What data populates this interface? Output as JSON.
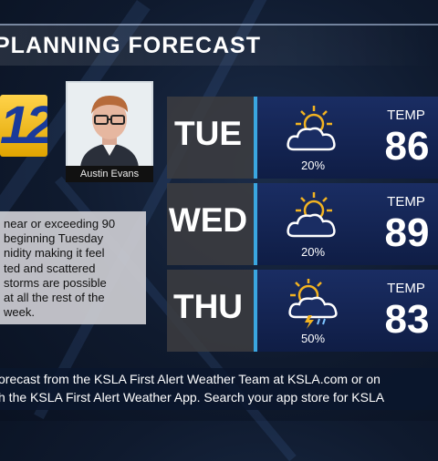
{
  "title": "PLANNING FORECAST",
  "logo": {
    "text": "12"
  },
  "presenter": {
    "name": "Austin Evans"
  },
  "story_lines": [
    "near or exceeding 90",
    "beginning Tuesday",
    "nidity making it feel",
    "ted and scattered",
    "storms are possible",
    "at all the rest of the",
    "week."
  ],
  "forecast": [
    {
      "day": "TUE",
      "icon": "partly-cloudy-icon",
      "precip": "20%",
      "temp_label": "TEMP",
      "temp": "86"
    },
    {
      "day": "WED",
      "icon": "partly-cloudy-icon",
      "precip": "20%",
      "temp_label": "TEMP",
      "temp": "89"
    },
    {
      "day": "THU",
      "icon": "thunderstorm-icon",
      "precip": "50%",
      "temp_label": "TEMP",
      "temp": "83"
    }
  ],
  "ticker": {
    "line1": "orecast from the KSLA First Alert Weather Team at KSLA.com or on",
    "line2": "h the KSLA First Alert Weather App. Search your app store for KSLA"
  },
  "colors": {
    "panel": "#1a2d63",
    "accent": "#3aa6e0",
    "sun": "#f2b321"
  }
}
